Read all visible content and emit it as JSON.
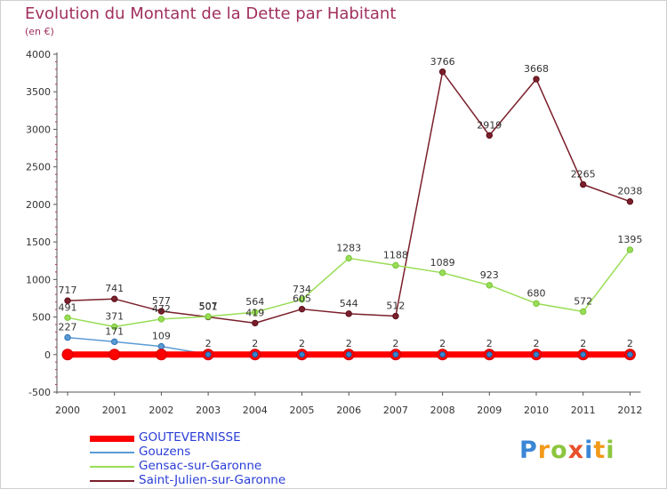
{
  "title": "Evolution du Montant de la Dette par Habitant",
  "subtitle": "(en €)",
  "chart_data": {
    "type": "line",
    "title": "Evolution du Montant de la Dette par Habitant",
    "ylabel": "(en €)",
    "x": [
      "2000",
      "2001",
      "2002",
      "2003",
      "2004",
      "2005",
      "2006",
      "2007",
      "2008",
      "2009",
      "2010",
      "2011",
      "2012"
    ],
    "ylim": [
      -500,
      4000
    ],
    "yticks": [
      "-500",
      "0",
      "500",
      "1000",
      "1500",
      "2000",
      "2500",
      "3000",
      "3500",
      "4000"
    ],
    "grid": false,
    "legend_position": "bottom-left",
    "series": [
      {
        "name": "GOUTEVERNISSE",
        "color": "#ff0000",
        "values": [
          0,
          0,
          0,
          0,
          0,
          0,
          0,
          0,
          0,
          0,
          0,
          0,
          0
        ],
        "labels": [
          "",
          "",
          "",
          "",
          "",
          "",
          "",
          "",
          "",
          "",
          "",
          "",
          ""
        ]
      },
      {
        "name": "Gouzens",
        "color": "#5b9bd5",
        "values": [
          227,
          171,
          109,
          2,
          2,
          2,
          2,
          2,
          2,
          2,
          2,
          2,
          2
        ],
        "labels": [
          "227",
          "171",
          "109",
          "2",
          "2",
          "2",
          "2",
          "2",
          "2",
          "2",
          "2",
          "2",
          "2"
        ]
      },
      {
        "name": "Gensac-sur-Garonne",
        "color": "#99dd55",
        "values": [
          491,
          371,
          472,
          507,
          564,
          734,
          1283,
          1188,
          1089,
          923,
          680,
          572,
          1395
        ],
        "labels": [
          "491",
          "371",
          "472",
          "507",
          "564",
          "734",
          "1283",
          "1188",
          "1089",
          "923",
          "680",
          "572",
          "1395"
        ]
      },
      {
        "name": "Saint-Julien-sur-Garonne",
        "color": "#7a1f2b",
        "values": [
          717,
          741,
          577,
          501,
          419,
          605,
          544,
          512,
          3766,
          2919,
          3668,
          2265,
          2038
        ],
        "labels": [
          "717",
          "741",
          "577",
          "501",
          "419",
          "605",
          "544",
          "512",
          "3766",
          "2919",
          "3668",
          "2265",
          "2038"
        ]
      }
    ]
  },
  "legend": [
    {
      "name": "GOUTEVERNISSE",
      "color": "#ff0000"
    },
    {
      "name": "Gouzens",
      "color": "#5b9bd5"
    },
    {
      "name": "Gensac-sur-Garonne",
      "color": "#99dd55"
    },
    {
      "name": "Saint-Julien-sur-Garonne",
      "color": "#7a1f2b"
    }
  ],
  "logo": {
    "letters": [
      "P",
      "r",
      "o",
      "x",
      "i",
      "t",
      "i"
    ],
    "colors": [
      "#3b87d6",
      "#f29a1b",
      "#8cc63f",
      "#e8502a",
      "#3b87d6",
      "#f29a1b",
      "#8cc63f"
    ]
  }
}
